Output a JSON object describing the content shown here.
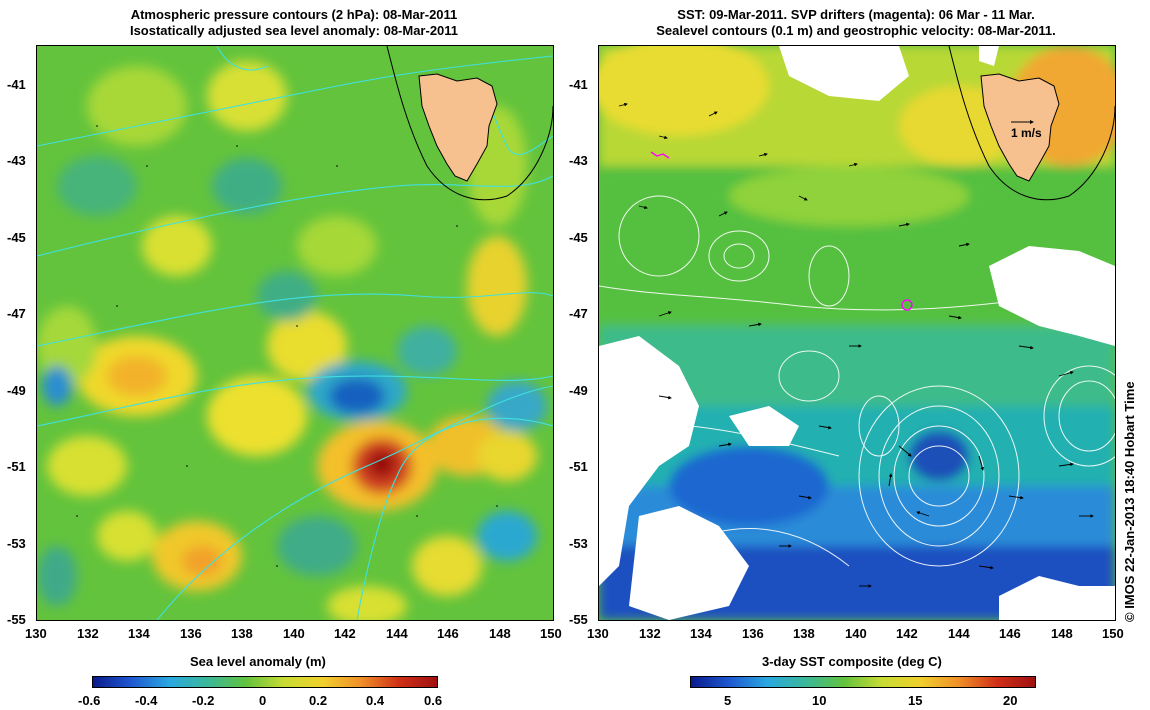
{
  "left_panel": {
    "title_line1": "Atmospheric pressure contours (2 hPa): 08-Mar-2011",
    "title_line2": "Isostatically adjusted sea level anomaly: 08-Mar-2011",
    "colorbar_label": "Sea level anomaly (m)",
    "colorbar_ticks": [
      "-0.6",
      "-0.4",
      "-0.2",
      "0",
      "0.2",
      "0.4",
      "0.6"
    ]
  },
  "right_panel": {
    "title_line1": "SST: 09-Mar-2011. SVP drifters (magenta): 06 Mar - 11 Mar.",
    "title_line2": "Sealevel contours (0.1 m) and geostrophic velocity: 08-Mar-2011.",
    "colorbar_label": "3-day SST composite (deg C)",
    "colorbar_ticks": [
      "5",
      "10",
      "15",
      "20"
    ],
    "velocity_scale_label": "1 m/s"
  },
  "axes": {
    "lat_ticks": [
      "-41",
      "-43",
      "-45",
      "-47",
      "-49",
      "-51",
      "-53",
      "-55"
    ],
    "lon_ticks": [
      "130",
      "132",
      "134",
      "136",
      "138",
      "140",
      "142",
      "144",
      "146",
      "148",
      "150"
    ]
  },
  "credit": "© IMOS 22-Jan-2013 18:40 Hobart Time",
  "colors": {
    "land": "#f7c08f",
    "slice_low": "#0a1a8c",
    "slice_mid": "#62c23f",
    "slice_high": "#a01010",
    "pressure_contour": "#40e0e0",
    "sealevel_contour": "#ffffff",
    "drifter": "#ff00ff"
  },
  "icons": {
    "velocity_scale_arrow": "arrow-right-icon"
  }
}
